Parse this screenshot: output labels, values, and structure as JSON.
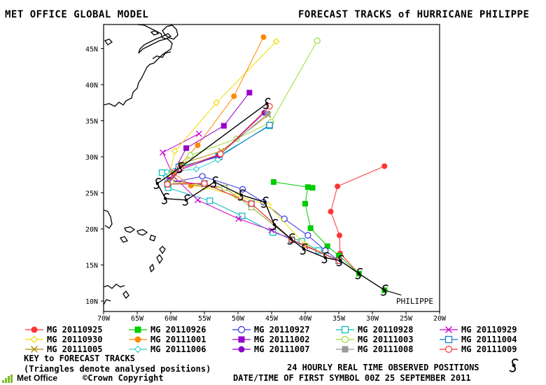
{
  "header": {
    "model": "MET OFFICE GLOBAL MODEL",
    "title": "FORECAST TRACKS of HURRICANE PHILIPPE"
  },
  "map": {
    "lon_labels": [
      "70W",
      "65W",
      "60W",
      "55W",
      "50W",
      "45W",
      "40W",
      "35W",
      "30W",
      "25W",
      "20W"
    ],
    "lat_labels": [
      "10N",
      "15N",
      "20N",
      "25N",
      "30N",
      "35N",
      "40N",
      "45N"
    ],
    "storm_label": "PHILIPPE"
  },
  "legend": {
    "items": [
      {
        "label": "MG 20110925",
        "color": "#ff3333",
        "marker": "filled-circle"
      },
      {
        "label": "MG 20110926",
        "color": "#00cc00",
        "marker": "filled-square"
      },
      {
        "label": "MG 20110927",
        "color": "#3333dd",
        "marker": "open-circle"
      },
      {
        "label": "MG 20110928",
        "color": "#00bbbb",
        "marker": "open-square"
      },
      {
        "label": "MG 20110929",
        "color": "#cc00cc",
        "marker": "cross"
      },
      {
        "label": "MG 20110930",
        "color": "#eedd00",
        "marker": "diamond"
      },
      {
        "label": "MG 20111001",
        "color": "#ff8800",
        "marker": "filled-circle"
      },
      {
        "label": "MG 20111002",
        "color": "#9900cc",
        "marker": "filled-square"
      },
      {
        "label": "MG 20111003",
        "color": "#99dd33",
        "marker": "open-circle"
      },
      {
        "label": "MG 20111004",
        "color": "#1177cc",
        "marker": "open-square"
      },
      {
        "label": "MG 20111005",
        "color": "#aa8800",
        "marker": "cross"
      },
      {
        "label": "MG 20111006",
        "color": "#33cccc",
        "marker": "diamond"
      },
      {
        "label": "MG 20111007",
        "color": "#8800cc",
        "marker": "filled-circle"
      },
      {
        "label": "MG 20111008",
        "color": "#999999",
        "marker": "filled-square"
      },
      {
        "label": "MG 20111009",
        "color": "#ff3333",
        "marker": "open-circle"
      }
    ]
  },
  "footer": {
    "key_title": "KEY to FORECAST TRACKS",
    "key_note": "(Triangles denote analysed positions)",
    "observed": "24 HOURLY REAL TIME OBSERVED POSITIONS",
    "date_line": "DATE/TIME OF FIRST SYMBOL 00Z 25 SEPTEMBER 2011",
    "copyright": "©Crown Copyright",
    "logo_text": "Met Office"
  },
  "tracks": [
    {
      "name": "MG 20110925",
      "points": [
        [
          -28.2,
          11.5
        ],
        [
          -32,
          13.8
        ],
        [
          -34.8,
          16.6
        ],
        [
          -34.9,
          19.1
        ],
        [
          -36.2,
          22.4
        ],
        [
          -35.2,
          25.9
        ],
        [
          -28.2,
          28.7
        ]
      ]
    },
    {
      "name": "MG 20110926",
      "points": [
        [
          -28.2,
          11.5
        ],
        [
          -32,
          13.8
        ],
        [
          -35.0,
          16.3
        ],
        [
          -36.7,
          17.6
        ],
        [
          -39.2,
          20.1
        ],
        [
          -40.0,
          23.5
        ],
        [
          -39.6,
          25.8
        ],
        [
          -38.9,
          25.7
        ],
        [
          -44.7,
          26.5
        ]
      ]
    },
    {
      "name": "MG 20110927",
      "points": [
        [
          -35,
          15.6
        ],
        [
          -37,
          17
        ],
        [
          -39.6,
          19.1
        ],
        [
          -43.1,
          21.4
        ],
        [
          -46.2,
          23.7
        ],
        [
          -49.3,
          25.5
        ],
        [
          -55.3,
          27.3
        ],
        [
          -60.5,
          26.3
        ]
      ]
    },
    {
      "name": "MG 20110928",
      "points": [
        [
          -35,
          15.6
        ],
        [
          -38,
          17
        ],
        [
          -40.5,
          18.3
        ],
        [
          -44.8,
          19.5
        ],
        [
          -49.4,
          21.8
        ],
        [
          -54.2,
          23.9
        ],
        [
          -60.4,
          25.7
        ],
        [
          -61.3,
          27.8
        ],
        [
          -58.7,
          28.6
        ],
        [
          -52.9,
          30.1
        ],
        [
          -45.3,
          34.3
        ]
      ]
    },
    {
      "name": "MG 20110929",
      "points": [
        [
          -35,
          15.6
        ],
        [
          -40,
          17.6
        ],
        [
          -45,
          19.8
        ],
        [
          -49.9,
          21.4
        ],
        [
          -56,
          24
        ],
        [
          -59.6,
          27.3
        ],
        [
          -61.2,
          30.6
        ],
        [
          -55.8,
          33.2
        ]
      ]
    },
    {
      "name": "MG 20110930",
      "points": [
        [
          -35,
          15.6
        ],
        [
          -40,
          17.8
        ],
        [
          -45.5,
          23.3
        ],
        [
          -50.3,
          24.6
        ],
        [
          -55,
          25.8
        ],
        [
          -60.3,
          26.9
        ],
        [
          -59.4,
          30.8
        ],
        [
          -53.2,
          37.5
        ],
        [
          -44.3,
          46
        ]
      ]
    },
    {
      "name": "MG 20111001",
      "points": [
        [
          -35,
          15.6
        ],
        [
          -42,
          18.5
        ],
        [
          -48,
          23
        ],
        [
          -52,
          25.7
        ],
        [
          -57,
          26
        ],
        [
          -59.7,
          27.8
        ],
        [
          -56,
          31.6
        ],
        [
          -50.6,
          38.4
        ],
        [
          -46.2,
          46.6
        ]
      ]
    },
    {
      "name": "MG 20111002",
      "points": [
        [
          -35,
          15.6
        ],
        [
          -42,
          18.5
        ],
        [
          -48,
          23
        ],
        [
          -52,
          25.7
        ],
        [
          -60.2,
          26.8
        ],
        [
          -57.7,
          31.2
        ],
        [
          -52.1,
          34.3
        ],
        [
          -48.3,
          38.9
        ]
      ]
    },
    {
      "name": "MG 20111003",
      "points": [
        [
          -35,
          15.6
        ],
        [
          -42,
          18.5
        ],
        [
          -48,
          23
        ],
        [
          -52,
          25.7
        ],
        [
          -60,
          26.5
        ],
        [
          -57.1,
          30.2
        ],
        [
          -50.2,
          32.5
        ],
        [
          -45.1,
          34.8
        ],
        [
          -38.2,
          46.1
        ]
      ]
    },
    {
      "name": "MG 20111004",
      "points": [
        [
          -35,
          15.6
        ],
        [
          -42,
          18.5
        ],
        [
          -48,
          23.5
        ],
        [
          -55,
          26.3
        ],
        [
          -60.5,
          26.2
        ],
        [
          -58.8,
          28.6
        ],
        [
          -52.8,
          30
        ],
        [
          -45.3,
          34.4
        ]
      ]
    },
    {
      "name": "MG 20111005",
      "points": [
        [
          -35,
          15.6
        ],
        [
          -42,
          18.5
        ],
        [
          -48,
          23.5
        ],
        [
          -55,
          26.3
        ],
        [
          -60.5,
          26.2
        ],
        [
          -58.5,
          29
        ],
        [
          -52.5,
          30.8
        ],
        [
          -45.5,
          35.8
        ]
      ]
    },
    {
      "name": "MG 20111006",
      "points": [
        [
          -35,
          15.6
        ],
        [
          -42,
          18.5
        ],
        [
          -48,
          23.5
        ],
        [
          -55,
          26.3
        ],
        [
          -60.5,
          26.2
        ],
        [
          -60.6,
          27.9
        ],
        [
          -56.2,
          28.3
        ],
        [
          -53,
          29.6
        ]
      ]
    },
    {
      "name": "MG 20111007",
      "points": [
        [
          -35,
          15.6
        ],
        [
          -42,
          18.5
        ],
        [
          -48,
          23.5
        ],
        [
          -55,
          26.3
        ],
        [
          -60.5,
          26.2
        ],
        [
          -58.6,
          28.2
        ],
        [
          -52.8,
          30.2
        ],
        [
          -46.1,
          36.1
        ]
      ]
    },
    {
      "name": "MG 20111008",
      "points": [
        [
          -35,
          15.6
        ],
        [
          -42,
          18.5
        ],
        [
          -48,
          23.5
        ],
        [
          -55,
          26.3
        ],
        [
          -60.5,
          26.2
        ],
        [
          -58.6,
          28.4
        ],
        [
          -52.6,
          30.4
        ],
        [
          -45.6,
          36
        ]
      ]
    },
    {
      "name": "MG 20111009",
      "points": [
        [
          -35,
          15.6
        ],
        [
          -42,
          18.5
        ],
        [
          -48,
          23.5
        ],
        [
          -55,
          26.3
        ],
        [
          -60.5,
          26.2
        ],
        [
          -58.6,
          28.4
        ],
        [
          -52.6,
          30.4
        ],
        [
          -45.3,
          37
        ]
      ]
    }
  ],
  "observed_positions": [
    [
      -28.2,
      11.5
    ],
    [
      -32,
      13.8
    ],
    [
      -34.8,
      15.6
    ],
    [
      -37,
      16
    ],
    [
      -40.2,
      17.2
    ],
    [
      -42.1,
      18.6
    ],
    [
      -44.6,
      20.6
    ],
    [
      -46,
      23.7
    ],
    [
      -49.5,
      24.7
    ],
    [
      -53.5,
      26.5
    ],
    [
      -57.7,
      24
    ],
    [
      -60.8,
      24.2
    ],
    [
      -62,
      26.3
    ],
    [
      -58.6,
      28.5
    ],
    [
      -45.7,
      37.4
    ]
  ]
}
